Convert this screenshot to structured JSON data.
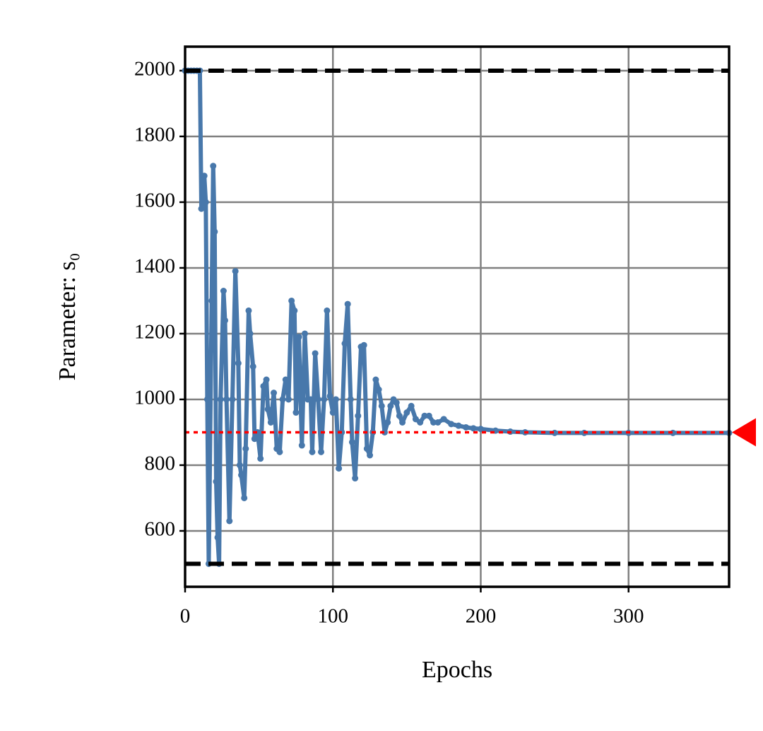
{
  "chart_data": {
    "type": "line",
    "xlabel": "Epochs",
    "ylabel": "Parameter: s₀",
    "x": [
      0,
      2,
      4,
      6,
      8,
      10,
      11,
      13,
      14,
      15,
      16,
      18,
      19,
      20,
      21,
      22,
      23,
      24,
      26,
      27,
      28,
      30,
      32,
      34,
      36,
      37,
      38,
      40,
      41,
      43,
      44,
      46,
      47,
      49,
      51,
      53,
      55,
      56,
      58,
      60,
      62,
      64,
      66,
      68,
      70,
      72,
      74,
      75,
      77,
      79,
      81,
      83,
      85,
      86,
      88,
      90,
      92,
      94,
      96,
      98,
      100,
      102,
      104,
      106,
      108,
      110,
      112,
      113,
      115,
      117,
      119,
      121,
      123,
      125,
      127,
      129,
      131,
      133,
      135,
      137,
      139,
      141,
      143,
      145,
      147,
      150,
      153,
      156,
      159,
      162,
      165,
      168,
      171,
      175,
      180,
      185,
      190,
      195,
      200,
      210,
      220,
      230,
      250,
      270,
      300,
      330,
      368
    ],
    "series": [
      {
        "color": "#4878ab",
        "values": [
          2000,
          2000,
          2000,
          2000,
          2000,
          2000,
          1580,
          1680,
          1600,
          1000,
          500,
          1300,
          1710,
          1510,
          750,
          580,
          500,
          1000,
          1330,
          1240,
          1000,
          630,
          1000,
          1390,
          1110,
          800,
          770,
          700,
          850,
          1270,
          1200,
          1100,
          880,
          900,
          820,
          1040,
          1060,
          970,
          930,
          1020,
          850,
          840,
          1000,
          1060,
          1000,
          1300,
          1270,
          960,
          1190,
          860,
          1200,
          1000,
          1000,
          840,
          1140,
          1000,
          840,
          1000,
          1270,
          1010,
          960,
          1000,
          790,
          900,
          1170,
          1290,
          1000,
          870,
          760,
          950,
          1160,
          1165,
          850,
          830,
          900,
          1060,
          1030,
          980,
          900,
          930,
          980,
          1000,
          990,
          950,
          930,
          960,
          980,
          940,
          930,
          950,
          950,
          930,
          930,
          940,
          925,
          920,
          915,
          912,
          910,
          905,
          902,
          900,
          898,
          898,
          898,
          898,
          898
        ]
      }
    ],
    "xlim": [
      0,
      368
    ],
    "ylim": [
      430,
      2073
    ],
    "xticks": [
      0,
      100,
      200,
      300
    ],
    "yticks": [
      600,
      800,
      1000,
      1200,
      1400,
      1600,
      1800,
      2000
    ],
    "grid": true,
    "hlines": [
      {
        "value": 2000,
        "style": "dashed",
        "color": "#000000"
      },
      {
        "value": 500,
        "style": "dashed",
        "color": "#000000"
      },
      {
        "value": 900,
        "style": "dotted",
        "color": "#ff0000"
      }
    ],
    "target_marker": {
      "value": 900,
      "color": "#ff0000"
    }
  }
}
